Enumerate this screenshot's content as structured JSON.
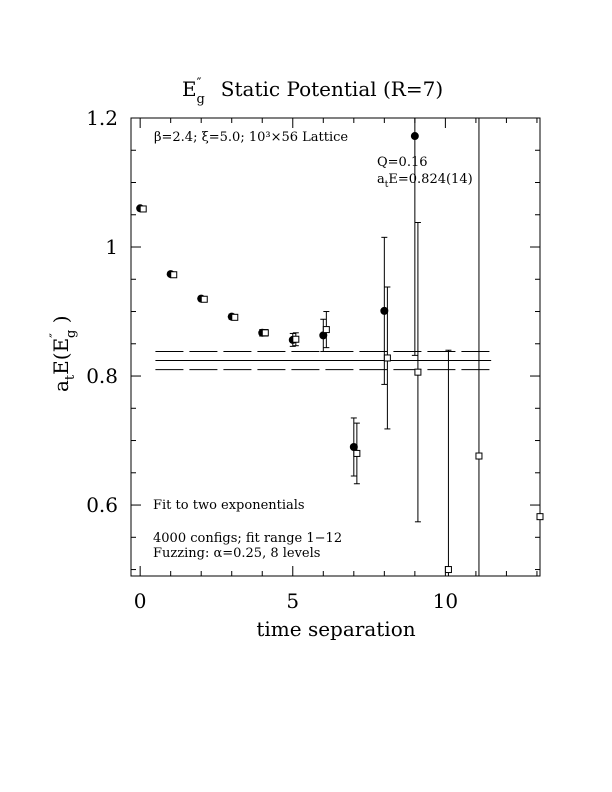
{
  "chart_data": {
    "type": "scatter",
    "title_main": "E",
    "title_sup": "″",
    "title_sub": "g",
    "title_rest": "Static Potential (R=7)",
    "xlabel": "time separation",
    "ylabel_pre": "a",
    "ylabel_sub_t": "t",
    "ylabel_mid": "E(E",
    "ylabel_sup": "″",
    "ylabel_sub_g": "g",
    "ylabel_end": " )",
    "xlim": [
      -0.3,
      13.1
    ],
    "ylim": [
      0.49,
      1.2
    ],
    "xticks_major": [
      0,
      5,
      10
    ],
    "xtick_labels": [
      "0",
      "5",
      "10"
    ],
    "yticks_major": [
      0.6,
      0.8,
      1.0,
      1.2
    ],
    "ytick_labels": [
      "0.6",
      "0.8",
      "1",
      "1.2"
    ],
    "lattice_info": "β=2.4; ξ=5.0; 10³×56 Lattice",
    "fit_q": "Q=0.16",
    "fit_e_pre": "a",
    "fit_e_sub": "t",
    "fit_e_post": "E=0.824(14)",
    "note_fit": "Fit to two exponentials",
    "note_configs": "4000 configs; fit range 1−12",
    "note_fuzz": "Fuzzing: α=0.25, 8 levels",
    "fit": {
      "central": 0.824,
      "err": 0.014,
      "x_range": [
        0.5,
        11.5
      ]
    },
    "series": [
      {
        "marker": "filled-circle",
        "points": [
          {
            "x": 0,
            "y": 1.06,
            "err": 0.002
          },
          {
            "x": 1,
            "y": 0.958,
            "err": 0.003
          },
          {
            "x": 2,
            "y": 0.92,
            "err": 0.003
          },
          {
            "x": 3,
            "y": 0.892,
            "err": 0.004
          },
          {
            "x": 4,
            "y": 0.867,
            "err": 0.005
          },
          {
            "x": 5,
            "y": 0.856,
            "err": 0.01
          },
          {
            "x": 6,
            "y": 0.863,
            "err": 0.025
          },
          {
            "x": 7,
            "y": 0.69,
            "err": 0.045
          },
          {
            "x": 8,
            "y": 0.901,
            "err": 0.114
          },
          {
            "x": 9,
            "y": 1.172,
            "err": 0.34
          }
        ]
      },
      {
        "marker": "open-square",
        "points": [
          {
            "x": 0.1,
            "y": 1.059,
            "err": 0.002
          },
          {
            "x": 1.1,
            "y": 0.957,
            "err": 0.003
          },
          {
            "x": 2.1,
            "y": 0.919,
            "err": 0.003
          },
          {
            "x": 3.1,
            "y": 0.891,
            "err": 0.004
          },
          {
            "x": 4.1,
            "y": 0.867,
            "err": 0.005
          },
          {
            "x": 5.1,
            "y": 0.857,
            "err": 0.01
          },
          {
            "x": 6.1,
            "y": 0.872,
            "err": 0.028
          },
          {
            "x": 7.1,
            "y": 0.68,
            "err": 0.047
          },
          {
            "x": 8.1,
            "y": 0.828,
            "err": 0.11
          },
          {
            "x": 9.1,
            "y": 0.806,
            "err": 0.232
          },
          {
            "x": 10.1,
            "y": 0.5,
            "err": 0.34
          },
          {
            "x": 11.1,
            "y": 0.676,
            "err": 0.6
          },
          {
            "x": 13.1,
            "y": 0.582,
            "err": 0.7
          }
        ]
      }
    ]
  }
}
